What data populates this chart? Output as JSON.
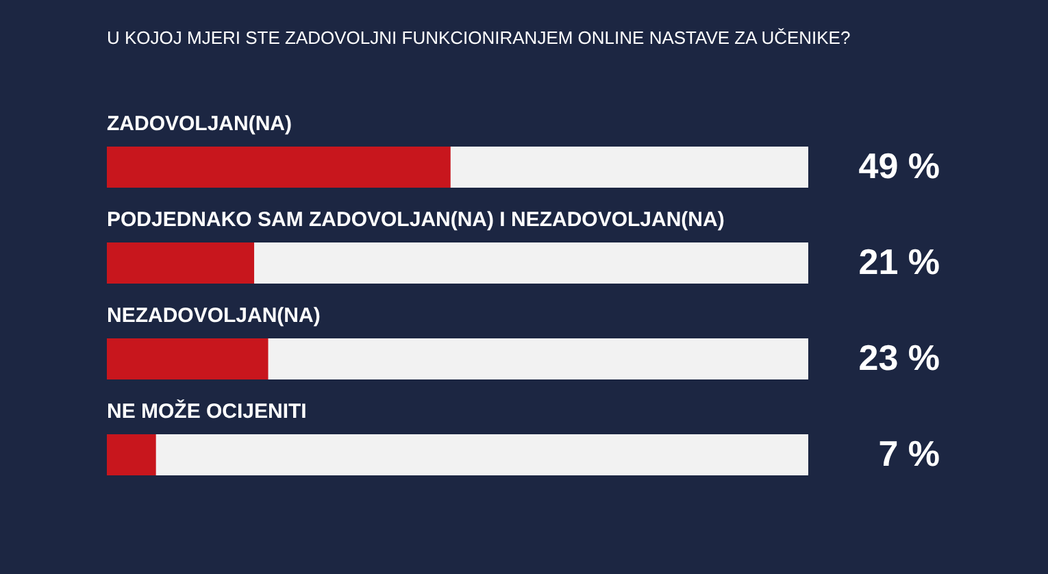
{
  "chart_data": {
    "type": "bar",
    "orientation": "horizontal",
    "title": "U KOJOJ MJERI STE ZADOVOLJNI FUNKCIONIRANJEM ONLINE NASTAVE ZA UČENIKE?",
    "categories": [
      "ZADOVOLJAN(NA)",
      "PODJEDNAKO SAM ZADOVOLJAN(NA) I NEZADOVOLJAN(NA)",
      "NEZADOVOLJAN(NA)",
      "NE MOŽE OCIJENITI"
    ],
    "values": [
      49,
      21,
      23,
      7
    ],
    "value_labels": [
      "49 %",
      "21 %",
      "23 %",
      "7 %"
    ],
    "color": "#c8161d",
    "xlim": [
      0,
      100
    ]
  }
}
